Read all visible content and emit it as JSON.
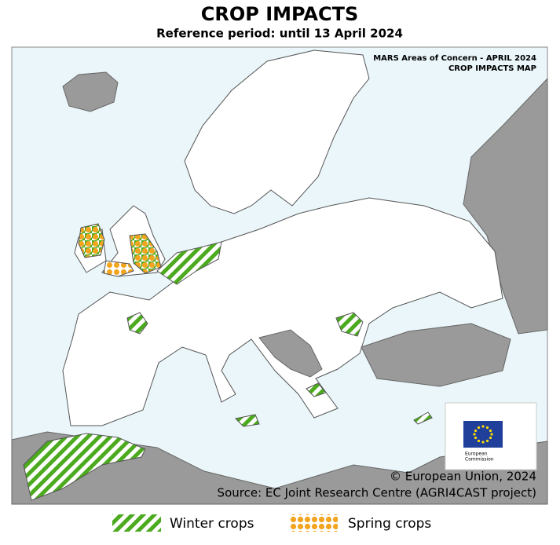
{
  "header": {
    "title": "CROP IMPACTS",
    "subtitle": "Reference period: until 13 April 2024"
  },
  "map": {
    "heading": [
      "MARS Areas of Concern - APRIL 2024",
      "CROP IMPACTS MAP"
    ],
    "logo_text": [
      "European",
      "Commission"
    ],
    "copyright": "© European Union, 2024",
    "source": "Source: EC Joint Research Centre (AGRI4CAST project)"
  },
  "legend": [
    {
      "label": "Winter crops"
    },
    {
      "label": "Spring crops"
    }
  ]
}
